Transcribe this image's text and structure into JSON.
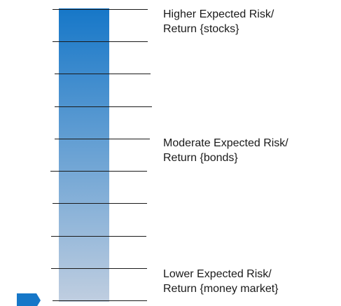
{
  "scale": {
    "gradient_top_color": "#1677C8",
    "gradient_bottom_color": "#C0CEE0",
    "line_color": "#1a1a1a",
    "marker_color": "#1677C8",
    "marker_icon": "pointer-tab-icon"
  },
  "labels": {
    "high": {
      "line1": "Higher Expected Risk/",
      "line2": "Return {stocks}"
    },
    "mid": {
      "line1": "Moderate Expected Risk/",
      "line2": "Return {bonds}"
    },
    "low": {
      "line1": "Lower Expected Risk/",
      "line2": "Return {money market}"
    }
  }
}
